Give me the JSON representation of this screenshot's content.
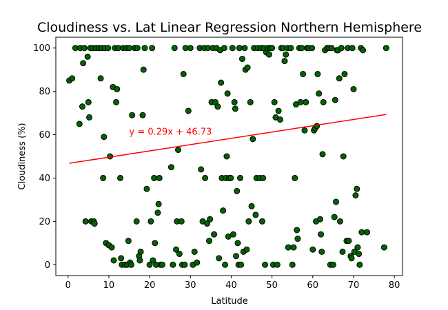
{
  "chart_data": {
    "type": "scatter",
    "title": "Cloudiness vs. Lat Linear Regression Northern Hemisphere",
    "xlabel": "Latitude",
    "ylabel": "Cloudiness (%)",
    "xlim": [
      -3,
      82
    ],
    "ylim": [
      -5,
      105
    ],
    "xticks": [
      0,
      10,
      20,
      30,
      40,
      50,
      60,
      70,
      80
    ],
    "yticks": [
      0,
      20,
      40,
      60,
      80,
      100
    ],
    "grid": false,
    "marker_color": "#006400",
    "marker_edge_color": "#000000",
    "regression": {
      "slope": 0.29,
      "intercept": 46.73,
      "x_range": [
        0.3,
        78
      ],
      "color": "#ff0000",
      "equation_label": "y = 0.29x +  46.73",
      "label_x": 15,
      "label_y": 60
    },
    "points": [
      [
        0.3,
        85
      ],
      [
        1,
        86
      ],
      [
        1.8,
        100
      ],
      [
        2.8,
        65
      ],
      [
        3,
        100
      ],
      [
        3.5,
        73
      ],
      [
        3.7,
        93
      ],
      [
        4,
        100
      ],
      [
        4.3,
        20
      ],
      [
        4.8,
        96
      ],
      [
        5,
        75
      ],
      [
        5.2,
        68
      ],
      [
        5.5,
        100
      ],
      [
        5.7,
        20
      ],
      [
        6,
        100
      ],
      [
        6.3,
        20
      ],
      [
        6.5,
        19
      ],
      [
        6.8,
        100
      ],
      [
        7.5,
        100
      ],
      [
        8,
        86
      ],
      [
        8.2,
        100
      ],
      [
        8.6,
        40
      ],
      [
        8.8,
        59
      ],
      [
        9,
        100
      ],
      [
        9.3,
        10
      ],
      [
        9.8,
        100
      ],
      [
        10,
        9
      ],
      [
        10.3,
        50
      ],
      [
        10.7,
        8
      ],
      [
        11,
        82
      ],
      [
        11.2,
        2
      ],
      [
        11.5,
        100
      ],
      [
        11.8,
        75
      ],
      [
        12,
        81
      ],
      [
        12.3,
        100
      ],
      [
        12.8,
        40
      ],
      [
        13,
        3
      ],
      [
        13.2,
        0
      ],
      [
        13.5,
        100
      ],
      [
        14,
        0
      ],
      [
        14.3,
        100
      ],
      [
        14.5,
        0
      ],
      [
        14.8,
        11
      ],
      [
        15,
        100
      ],
      [
        15.2,
        1
      ],
      [
        15.5,
        0
      ],
      [
        15.7,
        69
      ],
      [
        16.3,
        100
      ],
      [
        16.8,
        20
      ],
      [
        17,
        100
      ],
      [
        17.4,
        4
      ],
      [
        17.6,
        2
      ],
      [
        17.8,
        6
      ],
      [
        18.3,
        69
      ],
      [
        18.5,
        90
      ],
      [
        18.8,
        100
      ],
      [
        19.3,
        35
      ],
      [
        20,
        0
      ],
      [
        20.3,
        20
      ],
      [
        20.6,
        100
      ],
      [
        20.8,
        2
      ],
      [
        21.1,
        40
      ],
      [
        21.3,
        10
      ],
      [
        21.6,
        0
      ],
      [
        22,
        24
      ],
      [
        22.2,
        28
      ],
      [
        22.4,
        40
      ],
      [
        22.7,
        0
      ],
      [
        23.1,
        0
      ],
      [
        25.3,
        45
      ],
      [
        25.7,
        0
      ],
      [
        26.1,
        100
      ],
      [
        26.5,
        7
      ],
      [
        26.7,
        20
      ],
      [
        27,
        53
      ],
      [
        27.3,
        5
      ],
      [
        27.8,
        20
      ],
      [
        28,
        0
      ],
      [
        28.3,
        88
      ],
      [
        28.6,
        0
      ],
      [
        28.8,
        100
      ],
      [
        29.5,
        71
      ],
      [
        30,
        100
      ],
      [
        30.6,
        0
      ],
      [
        31,
        6
      ],
      [
        31.6,
        1
      ],
      [
        32.3,
        100
      ],
      [
        32.6,
        44
      ],
      [
        33,
        20
      ],
      [
        33.4,
        100
      ],
      [
        33.6,
        40
      ],
      [
        34.1,
        19
      ],
      [
        34.3,
        100
      ],
      [
        34.6,
        11
      ],
      [
        34.8,
        21
      ],
      [
        35.2,
        75
      ],
      [
        35.5,
        100
      ],
      [
        35.8,
        14
      ],
      [
        36.1,
        75
      ],
      [
        36.4,
        100
      ],
      [
        36.7,
        73
      ],
      [
        37,
        3
      ],
      [
        37.3,
        99
      ],
      [
        37.5,
        84
      ],
      [
        37.7,
        40
      ],
      [
        38,
        25
      ],
      [
        38.3,
        100
      ],
      [
        38.5,
        0
      ],
      [
        38.7,
        40
      ],
      [
        38.9,
        50
      ],
      [
        39.1,
        79
      ],
      [
        39.3,
        13
      ],
      [
        39.5,
        40
      ],
      [
        39.9,
        40
      ],
      [
        40.3,
        100
      ],
      [
        40.5,
        14
      ],
      [
        40.8,
        75
      ],
      [
        41,
        72
      ],
      [
        41.2,
        4
      ],
      [
        41.4,
        34
      ],
      [
        41.6,
        10
      ],
      [
        41.8,
        0
      ],
      [
        42,
        100
      ],
      [
        42.2,
        40
      ],
      [
        42.4,
        0
      ],
      [
        42.7,
        95
      ],
      [
        43,
        6
      ],
      [
        43.3,
        100
      ],
      [
        43.5,
        90
      ],
      [
        43.8,
        7
      ],
      [
        44,
        91
      ],
      [
        44.3,
        20
      ],
      [
        44.7,
        75
      ],
      [
        45,
        27
      ],
      [
        45.3,
        58
      ],
      [
        45.6,
        100
      ],
      [
        46,
        23
      ],
      [
        46.2,
        40
      ],
      [
        46.5,
        100
      ],
      [
        47,
        40
      ],
      [
        47.3,
        100
      ],
      [
        47.6,
        20
      ],
      [
        47.8,
        40
      ],
      [
        48,
        100
      ],
      [
        48.3,
        0
      ],
      [
        48.6,
        98
      ],
      [
        49,
        100
      ],
      [
        49.3,
        97
      ],
      [
        49.6,
        100
      ],
      [
        50,
        100
      ],
      [
        50.3,
        0
      ],
      [
        50.6,
        75
      ],
      [
        50.9,
        68
      ],
      [
        51.3,
        0
      ],
      [
        51.6,
        71
      ],
      [
        52,
        67
      ],
      [
        52.3,
        100
      ],
      [
        52.7,
        100
      ],
      [
        53.1,
        94
      ],
      [
        53.4,
        97
      ],
      [
        53.8,
        100
      ],
      [
        54,
        8
      ],
      [
        54.6,
        100
      ],
      [
        55,
        0
      ],
      [
        55.3,
        8
      ],
      [
        55.6,
        40
      ],
      [
        55.9,
        74
      ],
      [
        56.1,
        16
      ],
      [
        56.3,
        12
      ],
      [
        56.7,
        100
      ],
      [
        57,
        75
      ],
      [
        57.3,
        100
      ],
      [
        57.6,
        88
      ],
      [
        58,
        62
      ],
      [
        58.3,
        75
      ],
      [
        58.6,
        100
      ],
      [
        59,
        100
      ],
      [
        59.8,
        100
      ],
      [
        60,
        7
      ],
      [
        60.3,
        62
      ],
      [
        60.6,
        63
      ],
      [
        60.8,
        20
      ],
      [
        61,
        64
      ],
      [
        61.2,
        88
      ],
      [
        61.5,
        79
      ],
      [
        61.8,
        21
      ],
      [
        62,
        14
      ],
      [
        62.2,
        6
      ],
      [
        62.4,
        51
      ],
      [
        62.6,
        75
      ],
      [
        63,
        99
      ],
      [
        63.5,
        100
      ],
      [
        64,
        100
      ],
      [
        64.3,
        0
      ],
      [
        64.6,
        100
      ],
      [
        65,
        0
      ],
      [
        65.3,
        22
      ],
      [
        65.5,
        76
      ],
      [
        65.7,
        29
      ],
      [
        65.9,
        99
      ],
      [
        66.2,
        99
      ],
      [
        66.5,
        86
      ],
      [
        66.7,
        20
      ],
      [
        67,
        100
      ],
      [
        67.3,
        6
      ],
      [
        67.5,
        50
      ],
      [
        67.8,
        88
      ],
      [
        68.3,
        11
      ],
      [
        68.6,
        100
      ],
      [
        68.8,
        11
      ],
      [
        69.3,
        4
      ],
      [
        69.5,
        3
      ],
      [
        69.7,
        100
      ],
      [
        70,
        81
      ],
      [
        70.2,
        6
      ],
      [
        70.5,
        32
      ],
      [
        70.8,
        35
      ],
      [
        71,
        8
      ],
      [
        71.3,
        5
      ],
      [
        71.5,
        0
      ],
      [
        71.8,
        100
      ],
      [
        72,
        15
      ],
      [
        72.3,
        99
      ],
      [
        73.3,
        15
      ],
      [
        77.5,
        8
      ],
      [
        78,
        100
      ]
    ]
  }
}
